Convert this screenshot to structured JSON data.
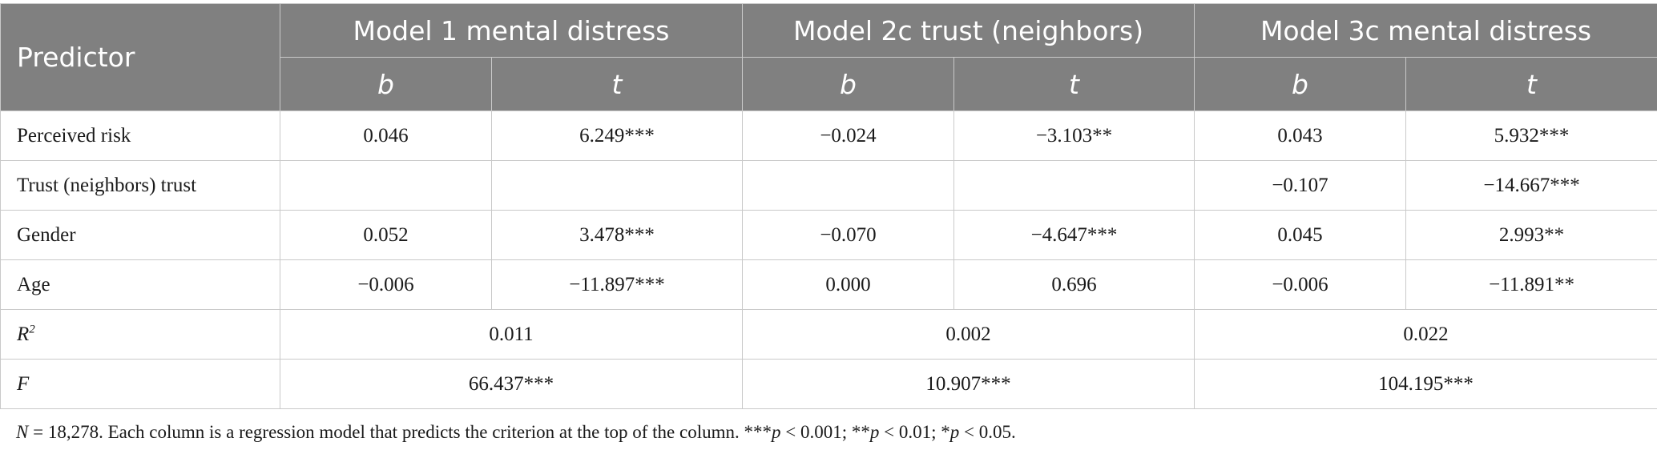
{
  "header": {
    "predictor": "Predictor",
    "models": [
      "Model 1 mental distress",
      "Model 2c trust (neighbors)",
      "Model 3c mental distress"
    ],
    "b": "b",
    "t": "t"
  },
  "rows": [
    {
      "label": "Perceived risk",
      "cells": [
        "0.046",
        "6.249***",
        "−0.024",
        "−3.103**",
        "0.043",
        "5.932***"
      ]
    },
    {
      "label": "Trust (neighbors) trust",
      "cells": [
        "",
        "",
        "",
        "",
        "−0.107",
        "−14.667***"
      ]
    },
    {
      "label": "Gender",
      "cells": [
        "0.052",
        "3.478***",
        "−0.070",
        "−4.647***",
        "0.045",
        "2.993**"
      ]
    },
    {
      "label": "Age",
      "cells": [
        "−0.006",
        "−11.897***",
        "0.000",
        "0.696",
        "−0.006",
        "−11.891**"
      ]
    }
  ],
  "summary": {
    "r2_label": "R",
    "r2_sup": "2",
    "r2_values": [
      "0.011",
      "0.002",
      "0.022"
    ],
    "f_label": "F",
    "f_values": [
      "66.437***",
      "10.907***",
      "104.195***"
    ]
  },
  "note": {
    "n_label": "N",
    "n_text": " = 18,278. Each column is a regression model that predicts the criterion at the top of the column. ***",
    "p1": "p",
    "t1": " < 0.001; **",
    "p2": "p",
    "t2": " < 0.01; *",
    "p3": "p",
    "t3": " < 0.05."
  }
}
